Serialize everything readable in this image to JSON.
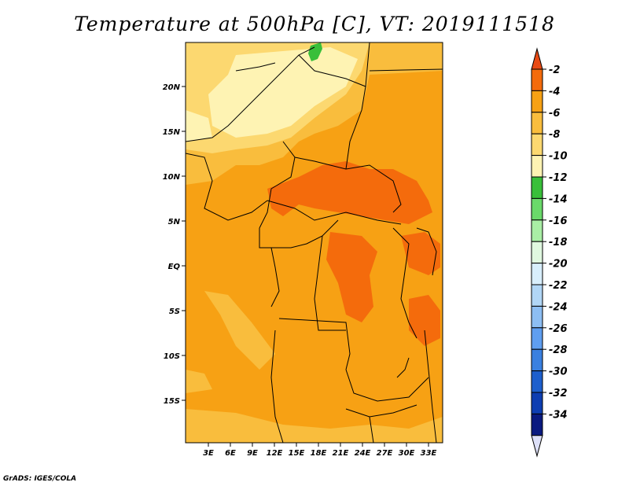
{
  "title": "Temperature at 500hPa [C], VT: 2019111518",
  "credit": "GrADS: IGES/COLA",
  "lat_labels": [
    "20N",
    "15N",
    "10N",
    "5N",
    "EQ",
    "5S",
    "10S",
    "15S"
  ],
  "lon_labels": [
    "3E",
    "6E",
    "9E",
    "12E",
    "15E",
    "18E",
    "21E",
    "24E",
    "27E",
    "30E",
    "33E"
  ],
  "colorbar": {
    "labels": [
      "-2",
      "-4",
      "-6",
      "-8",
      "-10",
      "-12",
      "-14",
      "-16",
      "-18",
      "-20",
      "-22",
      "-24",
      "-26",
      "-28",
      "-30",
      "-32",
      "-34"
    ],
    "colors": [
      "#e84a14",
      "#f46b0c",
      "#f7a114",
      "#f9bd3d",
      "#fcd870",
      "#fef3b3",
      "#39bf3a",
      "#6ad96a",
      "#a9eea5",
      "#e0f8e0",
      "#d8eefc",
      "#b1d6f6",
      "#8dbef3",
      "#5f9ef0",
      "#3a80e0",
      "#1d5fcd",
      "#0e3eb2",
      "#0a1a80",
      "#dde0f8"
    ]
  }
}
